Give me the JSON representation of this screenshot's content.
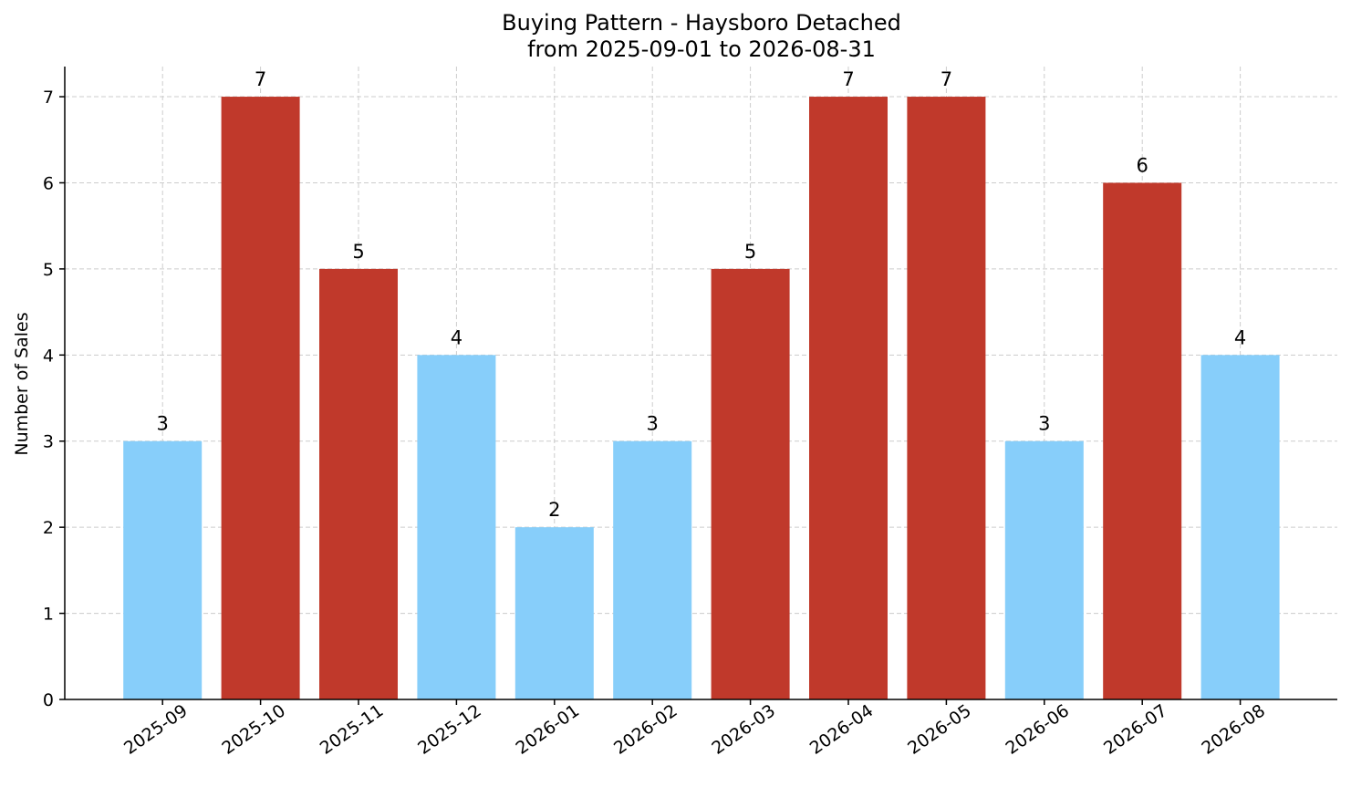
{
  "chart_data": {
    "type": "bar",
    "title": "Buying Pattern - Haysboro Detached",
    "subtitle": "from 2025-09-01 to 2026-08-31",
    "ylabel": "Number of Sales",
    "xlabel": "",
    "categories": [
      "2025-09",
      "2025-10",
      "2025-11",
      "2025-12",
      "2026-01",
      "2026-02",
      "2026-03",
      "2026-04",
      "2026-05",
      "2026-06",
      "2026-07",
      "2026-08"
    ],
    "values": [
      3,
      7,
      5,
      4,
      2,
      3,
      5,
      7,
      7,
      3,
      6,
      4
    ],
    "bar_colors": [
      "#87cefa",
      "#c0392b",
      "#c0392b",
      "#87cefa",
      "#87cefa",
      "#87cefa",
      "#c0392b",
      "#c0392b",
      "#c0392b",
      "#87cefa",
      "#c0392b",
      "#87cefa"
    ],
    "ylim": [
      0,
      7.35
    ],
    "yticks": [
      0,
      1,
      2,
      3,
      4,
      5,
      6,
      7
    ],
    "grid": true,
    "legend": "none"
  }
}
